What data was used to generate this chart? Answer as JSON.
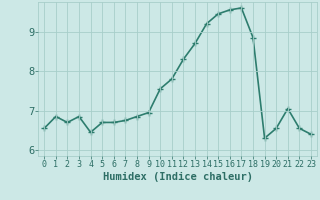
{
  "x": [
    0,
    1,
    2,
    3,
    4,
    5,
    6,
    7,
    8,
    9,
    10,
    11,
    12,
    13,
    14,
    15,
    16,
    17,
    18,
    19,
    20,
    21,
    22,
    23
  ],
  "y": [
    6.55,
    6.85,
    6.7,
    6.85,
    6.45,
    6.7,
    6.7,
    6.75,
    6.85,
    6.95,
    7.55,
    7.8,
    8.3,
    8.7,
    9.2,
    9.45,
    9.55,
    9.6,
    8.85,
    6.3,
    6.55,
    7.05,
    6.55,
    6.4
  ],
  "xlabel": "Humidex (Indice chaleur)",
  "bg_color": "#cce8e6",
  "line_color": "#2d7d6e",
  "marker": "+",
  "marker_size": 4,
  "ylim": [
    5.85,
    9.75
  ],
  "xlim": [
    -0.5,
    23.5
  ],
  "yticks": [
    6,
    7,
    8,
    9
  ],
  "xticks": [
    0,
    1,
    2,
    3,
    4,
    5,
    6,
    7,
    8,
    9,
    10,
    11,
    12,
    13,
    14,
    15,
    16,
    17,
    18,
    19,
    20,
    21,
    22,
    23
  ],
  "grid_color": "#a8ceca",
  "tick_label_color": "#2d6e65",
  "xlabel_fontsize": 7.5,
  "ytick_fontsize": 7.5,
  "xtick_fontsize": 6.0,
  "line_width": 1.2
}
